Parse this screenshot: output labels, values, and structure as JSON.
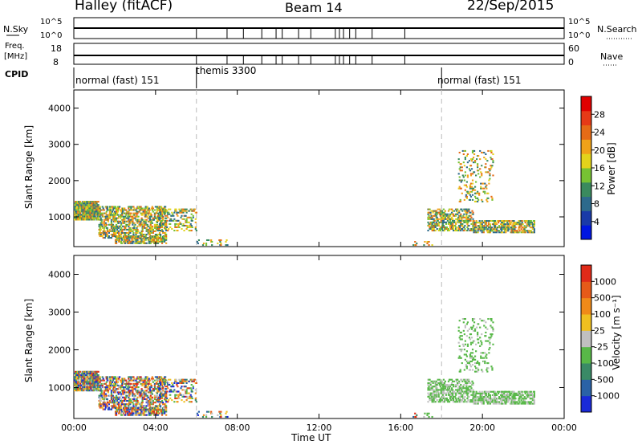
{
  "header": {
    "station": "Halley (fitACF)",
    "beam": "Beam 14",
    "date": "22/Sep/2015"
  },
  "aux_panels": {
    "nsky_label": "N.Sky",
    "nsky_ticks": [
      "10^5",
      "10^0"
    ],
    "nsearch_label": "N.Search",
    "nsearch_ticks": [
      "10^5",
      "10^0"
    ],
    "freq_label_line1": "Freq.",
    "freq_label_line2": "[MHz]",
    "freq_ticks": [
      "18",
      "8"
    ],
    "nave_label": "Nave",
    "nave_ticks": [
      "60",
      "0"
    ],
    "cpid_label": "CPID"
  },
  "cpid_segments": [
    {
      "label": "normal (fast) 151",
      "start_hour": 0
    },
    {
      "label": "themis 3300",
      "start_hour": 6
    },
    {
      "label": "normal (fast) 151",
      "start_hour": 18
    }
  ],
  "chart_data": [
    {
      "type": "heatmap",
      "ylabel": "Slant Range [km]",
      "yticks": [
        1000,
        2000,
        3000,
        4000
      ],
      "ylim": [
        180,
        4500
      ],
      "xlim": [
        0,
        24
      ],
      "colorbar": {
        "label": "Power [dB]",
        "ticks": [
          "28",
          "24",
          "20",
          "16",
          "12",
          "8",
          "4"
        ],
        "colors": [
          "#0016e0",
          "#1a3aa8",
          "#2d6a8c",
          "#3a8a5e",
          "#77c233",
          "#e3d31b",
          "#f0a218",
          "#e66b17",
          "#e63a17",
          "#e00000"
        ]
      }
    },
    {
      "type": "heatmap",
      "ylabel": "Slant Range [km]",
      "yticks": [
        1000,
        2000,
        3000,
        4000
      ],
      "ylim": [
        180,
        4500
      ],
      "xlim": [
        0,
        24
      ],
      "xlabel": "Time UT",
      "xticks": [
        "00:00",
        "04:00",
        "08:00",
        "12:00",
        "16:00",
        "20:00",
        "00:00"
      ],
      "colorbar": {
        "label": "Velocity [m s⁻¹]",
        "ticks": [
          "1000",
          "500",
          "100",
          "25",
          "-25",
          "-100",
          "-500",
          "-1000"
        ],
        "colors": [
          "#1a2ad8",
          "#2a62a6",
          "#3a8a66",
          "#58b848",
          "#c0c0c0",
          "#f0c020",
          "#f08a18",
          "#e65a18",
          "#e02a18"
        ]
      }
    }
  ]
}
